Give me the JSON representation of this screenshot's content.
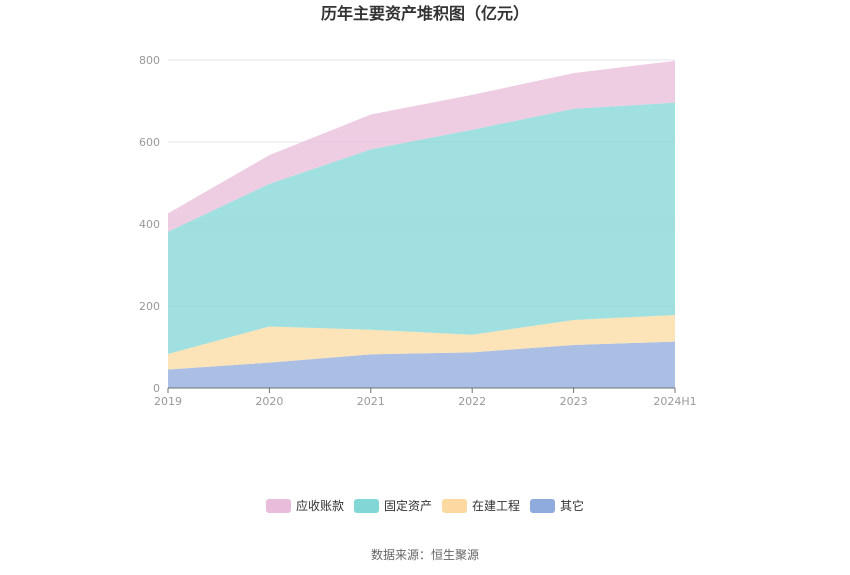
{
  "chart_data": {
    "type": "area",
    "stacked": true,
    "title": "历年主要资产堆积图（亿元）",
    "categories": [
      "2019",
      "2020",
      "2021",
      "2022",
      "2023",
      "2024H1"
    ],
    "y_ticks": [
      "0",
      "200",
      "400",
      "600",
      "800"
    ],
    "ylim": [
      0,
      800
    ],
    "series": [
      {
        "name": "其它",
        "color": "#8faadc",
        "values": [
          45,
          62,
          82,
          87,
          105,
          113
        ]
      },
      {
        "name": "在建工程",
        "color": "#fbd9a0",
        "values": [
          38,
          88,
          60,
          43,
          61,
          65
        ]
      },
      {
        "name": "固定资产",
        "color": "#82d6d6",
        "values": [
          298,
          348,
          440,
          500,
          515,
          518
        ]
      },
      {
        "name": "应收账款",
        "color": "#e8bcda",
        "values": [
          45,
          70,
          85,
          85,
          87,
          102
        ]
      }
    ],
    "legend": {
      "position": "bottom",
      "order": [
        "应收账款",
        "固定资产",
        "在建工程",
        "其它"
      ]
    },
    "grid": true
  },
  "footer": {
    "source": "数据来源：恒生聚源"
  }
}
